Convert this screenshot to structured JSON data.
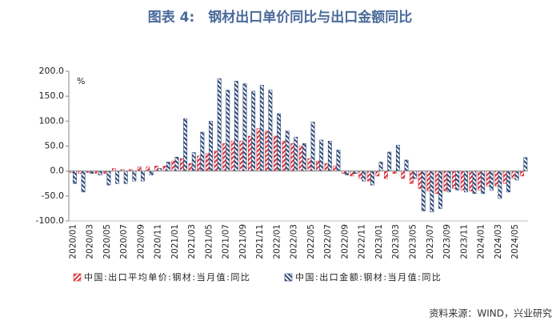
{
  "chart_data": {
    "type": "bar",
    "title": "图表 4:　钢材出口单价同比与出口金额同比",
    "y_unit": "%",
    "source": "资料来源：WIND，兴业研究",
    "categories": [
      "2020/01",
      null,
      "2020/03",
      null,
      "2020/05",
      null,
      "2020/07",
      null,
      "2020/09",
      null,
      "2020/11",
      null,
      "2021/01",
      null,
      "2021/03",
      null,
      "2021/05",
      null,
      "2021/07",
      null,
      "2021/09",
      null,
      "2021/11",
      null,
      "2022/01",
      null,
      "2022/03",
      null,
      "2022/05",
      null,
      "2022/07",
      null,
      "2022/09",
      null,
      "2022/11",
      null,
      "2023/01",
      null,
      "2023/03",
      null,
      "2023/05",
      null,
      "2023/07",
      null,
      "2023/09",
      null,
      "2023/11",
      null,
      "2024/01",
      null,
      "2024/03",
      null,
      "2024/05",
      null
    ],
    "series": [
      {
        "name": "中国:出口平均单价:钢材:当月值:同比",
        "color": "#d9343f",
        "values": [
          -3,
          -5,
          -3,
          -5,
          -5,
          5,
          3,
          3,
          8,
          8,
          10,
          10,
          20,
          25,
          15,
          30,
          35,
          40,
          55,
          60,
          60,
          70,
          85,
          80,
          70,
          60,
          55,
          50,
          25,
          20,
          15,
          10,
          -5,
          -10,
          -15,
          -20,
          -10,
          -15,
          -5,
          -15,
          -25,
          -35,
          -40,
          -45,
          -40,
          -35,
          -38,
          -40,
          -38,
          -30,
          -30,
          -25,
          -15,
          -10
        ]
      },
      {
        "name": "中国:出口金额:钢材:当月值:同比",
        "color": "#2f4a78",
        "values": [
          -25,
          -42,
          -5,
          -8,
          -28,
          -25,
          -25,
          -20,
          -20,
          -8,
          5,
          18,
          28,
          105,
          37,
          78,
          100,
          185,
          162,
          180,
          175,
          160,
          172,
          162,
          115,
          80,
          68,
          55,
          98,
          62,
          60,
          42,
          -8,
          -5,
          -20,
          -28,
          18,
          38,
          52,
          22,
          -15,
          -80,
          -82,
          -75,
          -42,
          -38,
          -42,
          -45,
          -45,
          -38,
          -55,
          -42,
          -18,
          27
        ]
      }
    ],
    "ylim": [
      -100,
      200
    ],
    "yticks": [
      {
        "value": -100,
        "label": "-100.0"
      },
      {
        "value": -50,
        "label": "-50.0"
      },
      {
        "value": 0,
        "label": "0.0"
      },
      {
        "value": 50,
        "label": "50.0"
      },
      {
        "value": 100,
        "label": "100.0"
      },
      {
        "value": 150,
        "label": "150.0"
      },
      {
        "value": 200,
        "label": "200.0"
      }
    ]
  }
}
